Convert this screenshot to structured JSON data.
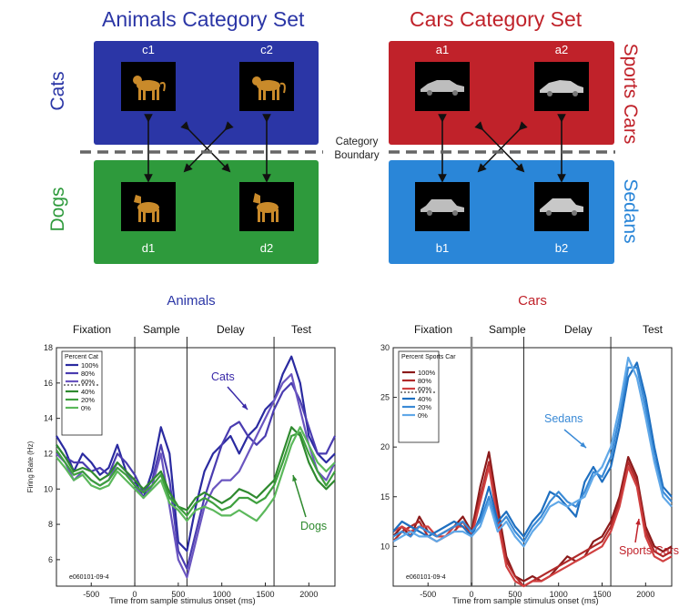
{
  "top": {
    "animals_title": "Animals Category Set",
    "cars_title": "Cars Category Set",
    "boundary_line1": "Category",
    "boundary_line2": "Boundary",
    "animals": {
      "upper_label": "Cats",
      "lower_label": "Dogs",
      "upper_items": [
        "c1",
        "c2"
      ],
      "lower_items": [
        "d1",
        "d2"
      ],
      "upper_color": "#2b36a6",
      "lower_color": "#2e9a3c"
    },
    "cars": {
      "upper_label": "Sports Cars",
      "lower_label": "Sedans",
      "upper_items": [
        "a1",
        "a2"
      ],
      "lower_items": [
        "b1",
        "b2"
      ],
      "upper_color": "#c0222a",
      "lower_color": "#2a86d8"
    }
  },
  "chart_data": [
    {
      "type": "line",
      "title": "Animals",
      "phases": [
        "Fixation",
        "Sample",
        "Delay",
        "Test"
      ],
      "xlabel": "Time from sample stimulus onset (ms)",
      "ylabel": "Firing Rate (Hz)",
      "xlim": [
        -900,
        2300
      ],
      "ylim": [
        4.5,
        18
      ],
      "xticks": [
        -500,
        0,
        500,
        1000,
        1500,
        2000
      ],
      "xtick_labels": [
        "-500",
        "0",
        "500",
        "1000",
        "1500",
        "2000"
      ],
      "yticks": [
        6,
        8,
        10,
        12,
        14,
        16,
        18
      ],
      "phase_boundaries": [
        0,
        600,
        1600
      ],
      "legend_title": "Percent Cat",
      "cell_id": "e060101-09-4",
      "annotations": [
        "Cats",
        "Dogs"
      ],
      "x": [
        -900,
        -800,
        -700,
        -600,
        -500,
        -400,
        -300,
        -200,
        -100,
        0,
        100,
        200,
        300,
        400,
        500,
        600,
        700,
        800,
        900,
        1000,
        1100,
        1200,
        1300,
        1400,
        1500,
        1600,
        1700,
        1800,
        1900,
        2000,
        2100,
        2200,
        2300
      ],
      "series": [
        {
          "name": "100%",
          "color": "#2a2aa0",
          "values": [
            13,
            12.2,
            11,
            12,
            11.5,
            10.8,
            11.2,
            12.5,
            11,
            10.5,
            9.5,
            11,
            13.5,
            12,
            7,
            6.5,
            9,
            11,
            12,
            12.5,
            13,
            12,
            13,
            13.5,
            14.5,
            15,
            16.5,
            17.5,
            16,
            13,
            12,
            11.5,
            12
          ]
        },
        {
          "name": "80%",
          "color": "#4a3cb0",
          "values": [
            12.5,
            11.8,
            11.5,
            11.5,
            11,
            11.2,
            10.8,
            12,
            11.5,
            10.8,
            9.8,
            10.5,
            12.5,
            10.5,
            6.5,
            5.5,
            7.5,
            9.5,
            11,
            12.5,
            13.5,
            13.8,
            13,
            12.5,
            13,
            14.5,
            15.5,
            16,
            15,
            13.5,
            12,
            12,
            13
          ]
        },
        {
          "name": "60%",
          "color": "#6a55c0",
          "values": [
            12,
            11.5,
            10.5,
            11,
            10.5,
            10.2,
            10.5,
            11.5,
            11,
            10.2,
            9.5,
            10.2,
            12,
            9,
            6,
            5,
            7,
            9,
            10,
            10.5,
            10.5,
            11,
            12,
            13,
            14,
            15,
            16,
            16.5,
            14.5,
            12.5,
            11,
            10.5,
            11.5
          ]
        },
        {
          "name": "40%",
          "color": "#2f8a2f",
          "values": [
            12.5,
            11.8,
            11,
            11.2,
            11,
            10.5,
            10.8,
            11.5,
            11,
            10.5,
            10,
            10.5,
            11,
            9.8,
            9,
            8.8,
            9.5,
            9.8,
            9.5,
            9.2,
            9.5,
            10,
            9.8,
            9.5,
            10,
            10.5,
            12,
            13.5,
            13,
            11.5,
            10.5,
            10,
            10.5
          ]
        },
        {
          "name": "20%",
          "color": "#3ea03e",
          "values": [
            12.2,
            11.5,
            10.8,
            11,
            10.5,
            10.2,
            10.5,
            11.2,
            10.8,
            10.2,
            9.8,
            10.2,
            10.8,
            9.5,
            9,
            8.5,
            9.2,
            9.5,
            9.2,
            8.8,
            9,
            9.5,
            9.5,
            9.2,
            9.5,
            10.2,
            11.5,
            13,
            13.2,
            12,
            11,
            10.2,
            11
          ]
        },
        {
          "name": "0%",
          "color": "#5bb85b",
          "values": [
            11.8,
            11.2,
            10.5,
            10.8,
            10.2,
            10,
            10.2,
            11,
            10.5,
            10,
            9.5,
            10,
            10.5,
            9.2,
            8.8,
            8.2,
            8.8,
            9,
            8.8,
            8.5,
            8.5,
            8.8,
            8.5,
            8.2,
            8.8,
            9.5,
            11,
            12.5,
            13.5,
            12.5,
            11.5,
            11,
            11.5
          ]
        }
      ]
    },
    {
      "type": "line",
      "title": "Cars",
      "phases": [
        "Fixation",
        "Sample",
        "Delay",
        "Test"
      ],
      "xlabel": "Time from sample stimulus onset (ms)",
      "ylabel": "",
      "xlim": [
        -900,
        2300
      ],
      "ylim": [
        6,
        30
      ],
      "xticks": [
        -500,
        0,
        500,
        1000,
        1500,
        2000
      ],
      "xtick_labels": [
        "-500",
        "0",
        "500",
        "1000",
        "1500",
        "2000"
      ],
      "yticks": [
        10,
        15,
        20,
        25,
        30
      ],
      "phase_boundaries": [
        0,
        600,
        1600
      ],
      "legend_title": "Percent Sports Car",
      "cell_id": "e060101-09-4",
      "annotations": [
        "Sedans",
        "Sports Cars"
      ],
      "x": [
        -900,
        -800,
        -700,
        -600,
        -500,
        -400,
        -300,
        -200,
        -100,
        0,
        100,
        200,
        300,
        400,
        500,
        600,
        700,
        800,
        900,
        1000,
        1100,
        1200,
        1300,
        1400,
        1500,
        1600,
        1700,
        1800,
        1900,
        2000,
        2100,
        2200,
        2300
      ],
      "series": [
        {
          "name": "100%",
          "color": "#8b1a1a",
          "values": [
            11,
            12,
            11,
            13,
            11.5,
            11,
            11.5,
            12,
            13,
            11.5,
            16,
            19.5,
            14,
            9,
            7,
            6.5,
            7,
            6.5,
            7,
            8,
            9,
            8.5,
            9,
            10.5,
            11,
            12.5,
            15,
            19,
            17,
            12,
            10,
            9.5,
            10
          ]
        },
        {
          "name": "80%",
          "color": "#b02a2a",
          "values": [
            10.5,
            11.5,
            12,
            12.5,
            11,
            10.5,
            11,
            11.5,
            12.5,
            11,
            15,
            18.5,
            13,
            8.5,
            7,
            6,
            6.5,
            7,
            7.5,
            8,
            8.5,
            9,
            9.5,
            10,
            10.5,
            12,
            14.5,
            18.5,
            16.5,
            11.5,
            9.5,
            9,
            9.5
          ]
        },
        {
          "name": "60%",
          "color": "#d04040",
          "values": [
            11.5,
            12,
            11.5,
            12,
            12,
            11,
            11,
            12,
            12,
            11,
            14.5,
            18,
            12.5,
            8,
            6.5,
            6,
            6.5,
            6.5,
            7,
            7.5,
            8,
            8.5,
            9,
            9.5,
            10,
            11.5,
            14,
            18,
            16,
            11,
            9,
            8.5,
            9
          ]
        },
        {
          "name": "40%",
          "color": "#1e6fc0",
          "values": [
            11.5,
            12.5,
            12,
            11.5,
            11,
            11.5,
            12,
            12.5,
            12,
            11,
            13,
            16,
            12.5,
            13.5,
            12,
            11,
            12.5,
            13.5,
            15.5,
            15,
            14,
            13,
            16.5,
            18,
            16.5,
            18,
            22,
            27,
            28.5,
            25,
            20,
            16,
            15
          ]
        },
        {
          "name": "20%",
          "color": "#3a8ad6",
          "values": [
            11,
            11.5,
            11,
            12,
            11.5,
            11,
            11.5,
            12,
            12.5,
            11.5,
            12.5,
            15,
            12,
            13,
            11.5,
            10.5,
            12,
            13,
            14.5,
            15.5,
            14.5,
            14,
            15.5,
            17.5,
            17,
            19,
            23,
            28,
            28,
            24,
            19,
            15.5,
            14.5
          ]
        },
        {
          "name": "0%",
          "color": "#60a8e8",
          "values": [
            10.5,
            11,
            11.5,
            11,
            11,
            10.5,
            11,
            11.5,
            11.5,
            11,
            12,
            14.5,
            11.5,
            12.5,
            11,
            10,
            11.5,
            12.5,
            14,
            14.5,
            14,
            14.5,
            15,
            17,
            18,
            20,
            24,
            29,
            27,
            23,
            18.5,
            15,
            14
          ]
        }
      ]
    }
  ]
}
